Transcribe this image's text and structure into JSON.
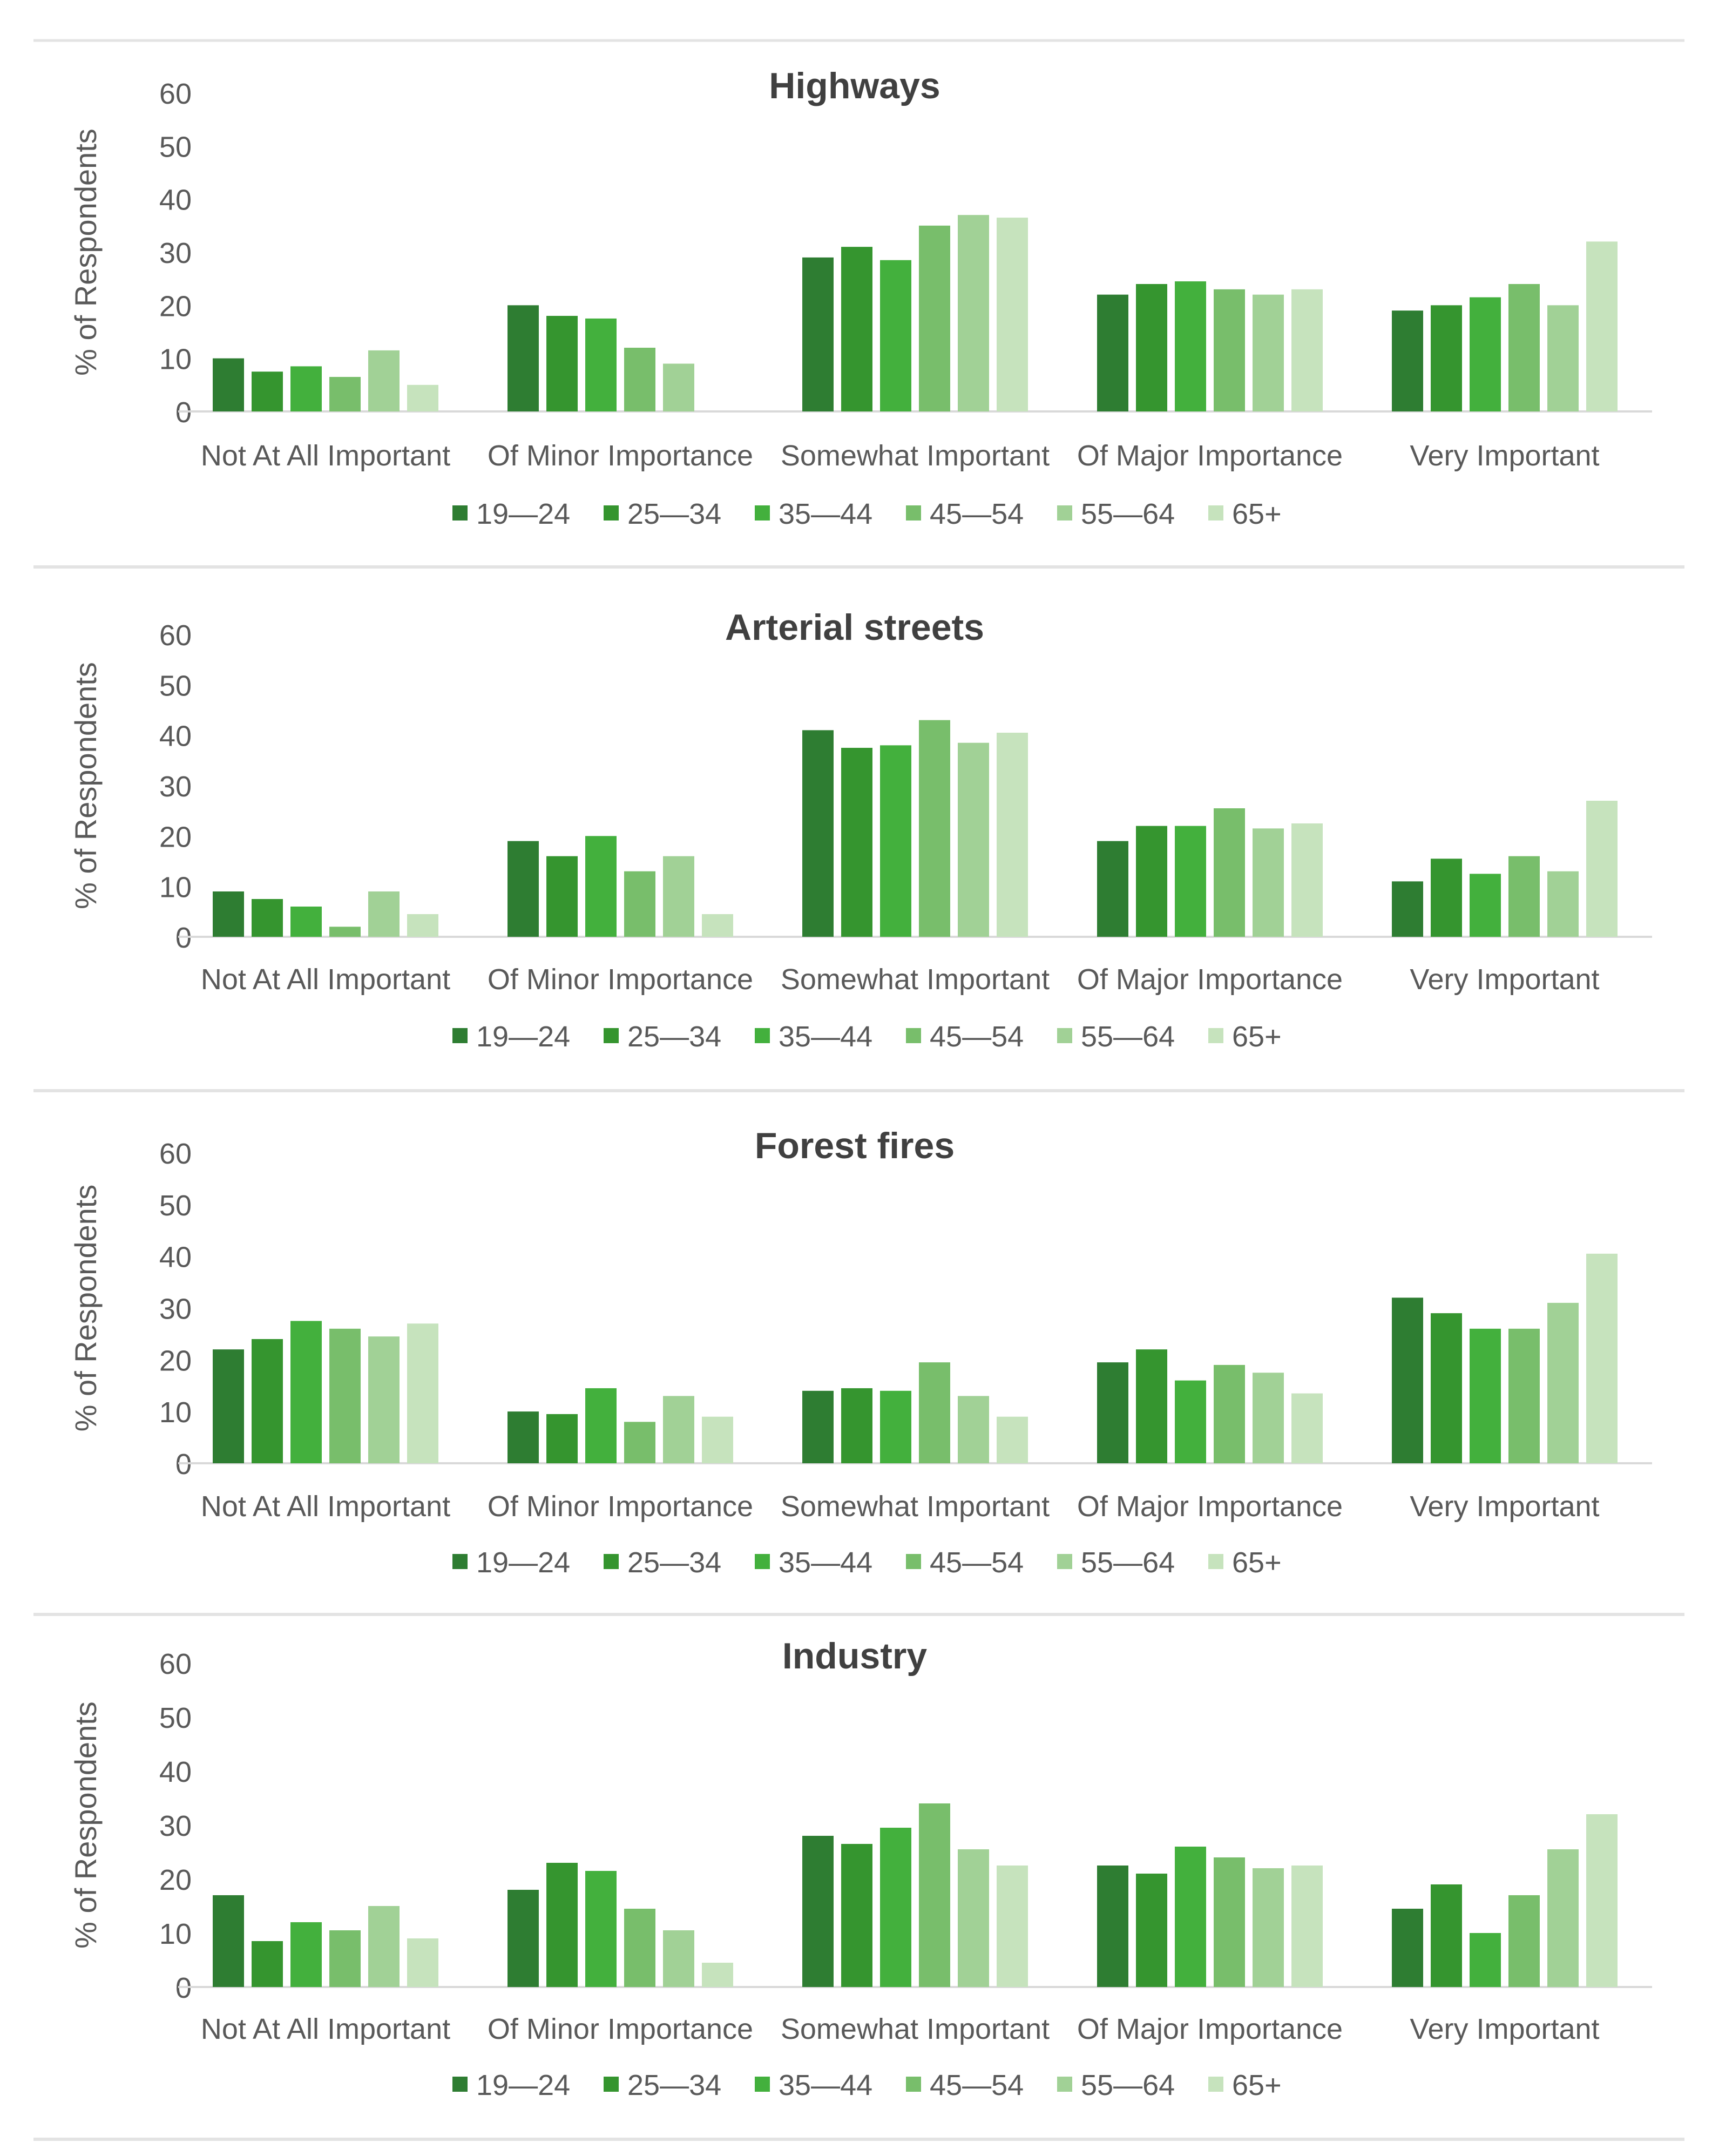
{
  "colors": {
    "series": [
      "#2e7d32",
      "#35952f",
      "#43b03d",
      "#78be6b",
      "#a1d196",
      "#c6e3bd"
    ],
    "axis": "#d9d9d9",
    "separator": "#e3e3e3",
    "text": "#595959",
    "title": "#404040"
  },
  "chart_data": [
    {
      "type": "bar",
      "title": "Highways",
      "xlabel": "",
      "ylabel": "% of Respondents",
      "ylim": [
        0,
        60
      ],
      "yticks": [
        "0",
        "10",
        "20",
        "30",
        "40",
        "50",
        "60"
      ],
      "categories": [
        "Not At All Important",
        "Of Minor Importance",
        "Somewhat Important",
        "Of Major Importance",
        "Very Important"
      ],
      "series": [
        {
          "name": "19—24",
          "values": [
            10,
            20,
            29,
            22,
            19
          ]
        },
        {
          "name": "25—34",
          "values": [
            7.5,
            18,
            31,
            24,
            20
          ]
        },
        {
          "name": "35—44",
          "values": [
            8.5,
            17.5,
            28.5,
            24.5,
            21.5
          ]
        },
        {
          "name": "45—54",
          "values": [
            6.5,
            12,
            35,
            23,
            24
          ]
        },
        {
          "name": "55—64",
          "values": [
            11.5,
            9,
            37,
            22,
            20
          ]
        },
        {
          "name": "65+",
          "values": [
            5,
            0,
            36.5,
            23,
            32
          ]
        }
      ],
      "legend": "bottom"
    },
    {
      "type": "bar",
      "title": "Arterial streets",
      "xlabel": "",
      "ylabel": "% of Respondents",
      "ylim": [
        0,
        60
      ],
      "yticks": [
        "0",
        "10",
        "20",
        "30",
        "40",
        "50",
        "60"
      ],
      "categories": [
        "Not At All Important",
        "Of Minor Importance",
        "Somewhat Important",
        "Of Major Importance",
        "Very Important"
      ],
      "series": [
        {
          "name": "19—24",
          "values": [
            9,
            19,
            41,
            19,
            11
          ]
        },
        {
          "name": "25—34",
          "values": [
            7.5,
            16,
            37.5,
            22,
            15.5
          ]
        },
        {
          "name": "35—44",
          "values": [
            6,
            20,
            38,
            22,
            12.5
          ]
        },
        {
          "name": "45—54",
          "values": [
            2,
            13,
            43,
            25.5,
            16
          ]
        },
        {
          "name": "55—64",
          "values": [
            9,
            16,
            38.5,
            21.5,
            13
          ]
        },
        {
          "name": "65+",
          "values": [
            4.5,
            4.5,
            40.5,
            22.5,
            27
          ]
        }
      ],
      "legend": "bottom"
    },
    {
      "type": "bar",
      "title": "Forest fires",
      "xlabel": "",
      "ylabel": "% of Respondents",
      "ylim": [
        0,
        60
      ],
      "yticks": [
        "0",
        "10",
        "20",
        "30",
        "40",
        "50",
        "60"
      ],
      "categories": [
        "Not At All Important",
        "Of Minor Importance",
        "Somewhat Important",
        "Of Major Importance",
        "Very Important"
      ],
      "series": [
        {
          "name": "19—24",
          "values": [
            22,
            10,
            14,
            19.5,
            32
          ]
        },
        {
          "name": "25—34",
          "values": [
            24,
            9.5,
            14.5,
            22,
            29
          ]
        },
        {
          "name": "35—44",
          "values": [
            27.5,
            14.5,
            14,
            16,
            26
          ]
        },
        {
          "name": "45—54",
          "values": [
            26,
            8,
            19.5,
            19,
            26
          ]
        },
        {
          "name": "55—64",
          "values": [
            24.5,
            13,
            13,
            17.5,
            31
          ]
        },
        {
          "name": "65+",
          "values": [
            27,
            9,
            9,
            13.5,
            40.5
          ]
        }
      ],
      "legend": "bottom"
    },
    {
      "type": "bar",
      "title": "Industry",
      "xlabel": "",
      "ylabel": "% of Respondents",
      "ylim": [
        0,
        60
      ],
      "yticks": [
        "0",
        "10",
        "20",
        "30",
        "40",
        "50",
        "60"
      ],
      "categories": [
        "Not At All Important",
        "Of Minor Importance",
        "Somewhat Important",
        "Of Major Importance",
        "Very Important"
      ],
      "series": [
        {
          "name": "19—24",
          "values": [
            17,
            18,
            28,
            22.5,
            14.5
          ]
        },
        {
          "name": "25—34",
          "values": [
            8.5,
            23,
            26.5,
            21,
            19
          ]
        },
        {
          "name": "35—44",
          "values": [
            12,
            21.5,
            29.5,
            26,
            10
          ]
        },
        {
          "name": "45—54",
          "values": [
            10.5,
            14.5,
            34,
            24,
            17
          ]
        },
        {
          "name": "55—64",
          "values": [
            15,
            10.5,
            25.5,
            22,
            25.5
          ]
        },
        {
          "name": "65+",
          "values": [
            9,
            4.5,
            22.5,
            22.5,
            32
          ]
        }
      ],
      "legend": "bottom"
    }
  ]
}
